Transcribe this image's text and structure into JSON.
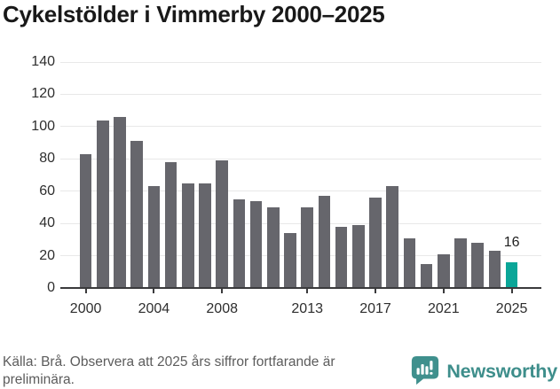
{
  "title": "Cykelstölder i Vimmerby 2000–2025",
  "chart_data": {
    "type": "bar",
    "title": "Cykelstölder i Vimmerby 2000–2025",
    "categories": [
      2000,
      2001,
      2002,
      2003,
      2004,
      2005,
      2006,
      2007,
      2008,
      2009,
      2010,
      2011,
      2012,
      2013,
      2014,
      2015,
      2016,
      2017,
      2018,
      2019,
      2020,
      2021,
      2022,
      2023,
      2024,
      2025
    ],
    "values": [
      83,
      104,
      106,
      91,
      63,
      78,
      65,
      65,
      79,
      55,
      54,
      50,
      34,
      50,
      57,
      38,
      39,
      56,
      63,
      31,
      15,
      21,
      31,
      28,
      23,
      16
    ],
    "xlabel": "",
    "ylabel": "",
    "ylim": [
      0,
      140
    ],
    "yticks": [
      0,
      20,
      40,
      60,
      80,
      100,
      120,
      140
    ],
    "xtick_years": [
      2000,
      2004,
      2008,
      2013,
      2017,
      2021,
      2025
    ],
    "grid": "horizontal",
    "legend": "none",
    "highlight_index": 25,
    "highlight_label": "16",
    "colors": {
      "bar": "#66666c",
      "highlight": "#0aa698",
      "gridline": "#e8e8e8",
      "axis": "#3a3a3c"
    }
  },
  "footer": {
    "source_text": "Källa: Brå. Observera att 2025 års siffror fortfarande är preliminära.",
    "brand_name": "Newsworthy",
    "brand_color": "#3e8e8b"
  }
}
